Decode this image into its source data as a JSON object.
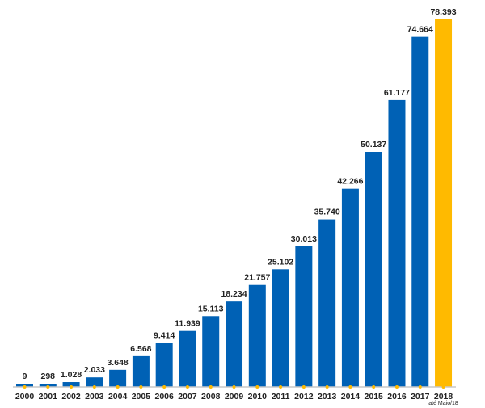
{
  "chart_data": {
    "type": "bar",
    "categories": [
      "2000",
      "2001",
      "2002",
      "2003",
      "2004",
      "2005",
      "2006",
      "2007",
      "2008",
      "2009",
      "2010",
      "2011",
      "2012",
      "2013",
      "2014",
      "2015",
      "2016",
      "2017",
      "2018"
    ],
    "values": [
      9,
      298,
      1028,
      2033,
      3648,
      6568,
      9414,
      11939,
      15113,
      18234,
      21757,
      25102,
      30013,
      35740,
      42266,
      50137,
      61177,
      74664,
      78393
    ],
    "value_labels": [
      "9",
      "298",
      "1.028",
      "2.033",
      "3.648",
      "6.568",
      "9.414",
      "11.939",
      "15.113",
      "18.234",
      "21.757",
      "25.102",
      "30.013",
      "35.740",
      "42.266",
      "50.137",
      "61.177",
      "74.664",
      "78.393"
    ],
    "highlight_index": 18,
    "highlight_sublabel": "até Maio/18",
    "colors": {
      "bar": "#0061b5",
      "highlight": "#ffba00",
      "axis": "#c8c8c8",
      "tick_mark": "#ffba00"
    },
    "ylim": [
      0,
      82000
    ],
    "grid": false,
    "title": "",
    "xlabel": "",
    "ylabel": ""
  }
}
